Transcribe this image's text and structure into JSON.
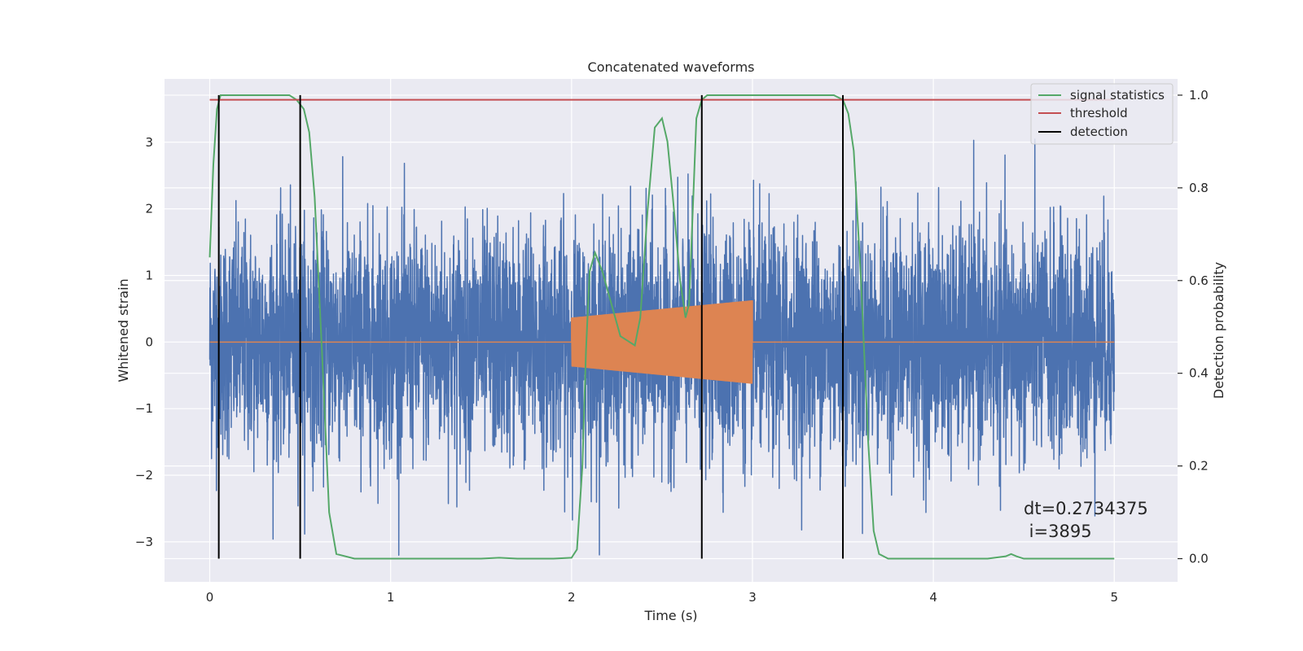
{
  "chart_data": {
    "type": "line",
    "title": "Concatenated waveforms",
    "xlabel": "Time (s)",
    "ylabel": "Whitened strain",
    "y2label": "Detection probability",
    "xlim": [
      -0.25,
      5.35
    ],
    "ylim": [
      -3.6,
      3.95
    ],
    "y2lim": [
      -0.05,
      1.035
    ],
    "xticks": [
      0,
      1,
      2,
      3,
      4,
      5
    ],
    "yticks": [
      -3,
      -2,
      -1,
      0,
      1,
      2,
      3
    ],
    "y2ticks": [
      0.0,
      0.2,
      0.4,
      0.6,
      0.8,
      1.0
    ],
    "grid": true,
    "legend_position": "upper right",
    "annotation": [
      "dt=0.2734375",
      " i=3895"
    ],
    "colors": {
      "background": "#eaeaf2",
      "grid": "#ffffff",
      "strain": "#4c72b0",
      "template": "#dd8452",
      "signal_statistics": "#55a868",
      "threshold": "#c44e52",
      "detection": "#000000"
    },
    "series": [
      {
        "name": "",
        "role": "whitened-strain",
        "x_range": [
          0,
          5
        ],
        "description_std": 0.85,
        "peak_min": -3.2,
        "peak_max": 3.6
      },
      {
        "name": "",
        "role": "injected-template",
        "x_range": [
          0,
          5
        ],
        "chirp_start": 2.0,
        "chirp_end": 3.0,
        "amp_start": 0.36,
        "amp_end": 0.62
      },
      {
        "name": "signal statistics",
        "role": "y2",
        "x": [
          0.0,
          0.02,
          0.04,
          0.06,
          0.1,
          0.2,
          0.3,
          0.44,
          0.48,
          0.52,
          0.55,
          0.58,
          0.62,
          0.66,
          0.7,
          0.8,
          1.5,
          1.6,
          1.7,
          1.9,
          2.0,
          2.03,
          2.06,
          2.08,
          2.1,
          2.13,
          2.17,
          2.22,
          2.27,
          2.31,
          2.35,
          2.38,
          2.42,
          2.46,
          2.5,
          2.53,
          2.56,
          2.6,
          2.63,
          2.65,
          2.67,
          2.69,
          2.72,
          2.75,
          2.8,
          3.0,
          3.45,
          3.5,
          3.53,
          3.56,
          3.6,
          3.64,
          3.67,
          3.7,
          3.75,
          4.0,
          4.3,
          4.4,
          4.43,
          4.46,
          4.5,
          4.6,
          5.0
        ],
        "y": [
          0.65,
          0.85,
          0.97,
          1.0,
          1.0,
          1.0,
          1.0,
          1.0,
          0.99,
          0.97,
          0.92,
          0.78,
          0.45,
          0.1,
          0.01,
          0.0,
          0.0,
          0.002,
          0.0,
          0.0,
          0.002,
          0.02,
          0.2,
          0.45,
          0.62,
          0.66,
          0.62,
          0.55,
          0.48,
          0.47,
          0.46,
          0.52,
          0.75,
          0.93,
          0.95,
          0.9,
          0.78,
          0.6,
          0.52,
          0.55,
          0.75,
          0.95,
          0.99,
          1.0,
          1.0,
          1.0,
          1.0,
          0.99,
          0.96,
          0.88,
          0.6,
          0.25,
          0.06,
          0.01,
          0.0,
          0.0,
          0.0,
          0.005,
          0.01,
          0.005,
          0.0,
          0.0,
          0.0
        ]
      },
      {
        "name": "threshold",
        "role": "y2",
        "x": [
          0,
          5
        ],
        "y": [
          0.99,
          0.99
        ]
      },
      {
        "name": "detection",
        "role": "y2-vertical",
        "x": [
          0.05,
          0.5,
          2.72,
          3.5
        ],
        "y_range": [
          0.0,
          1.0
        ]
      }
    ]
  }
}
